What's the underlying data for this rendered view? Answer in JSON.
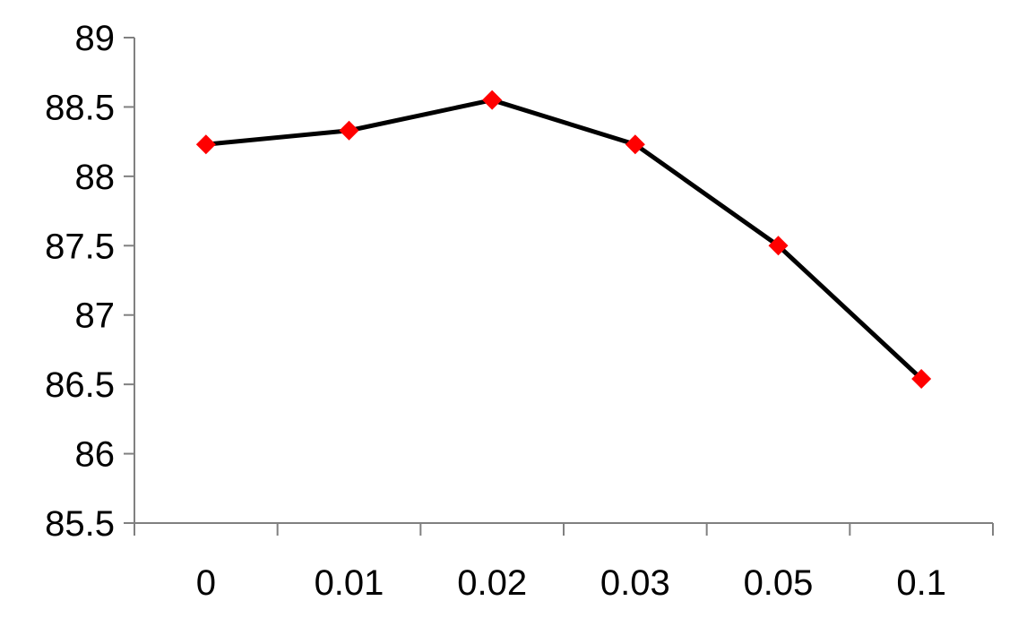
{
  "chart_data": {
    "type": "line",
    "categories": [
      "0",
      "0.01",
      "0.02",
      "0.03",
      "0.05",
      "0.1"
    ],
    "series": [
      {
        "values": [
          88.23,
          88.33,
          88.55,
          88.23,
          87.5,
          86.54
        ],
        "line_color": "#000000",
        "marker": "diamond",
        "marker_color": "#ff0000"
      }
    ],
    "title": "",
    "xlabel": "",
    "ylabel": "",
    "ylim": [
      85.5,
      89
    ],
    "y_ticks": [
      "85.5",
      "86",
      "86.5",
      "87",
      "87.5",
      "88",
      "88.5",
      "89"
    ],
    "grid": false,
    "legend": "none"
  }
}
